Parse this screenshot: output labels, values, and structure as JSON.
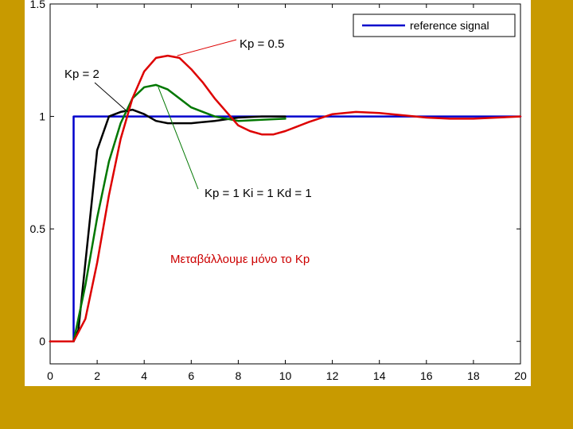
{
  "colors": {
    "background": "#c89a00",
    "panel": "#ffffff",
    "axes": "#000000"
  },
  "chart_data": {
    "type": "line",
    "title": "",
    "xlabel": "",
    "ylabel": "",
    "xlim": [
      0,
      20
    ],
    "ylim": [
      -0.1,
      1.5
    ],
    "x_ticks": [
      0,
      2,
      4,
      6,
      8,
      10,
      12,
      14,
      16,
      18,
      20
    ],
    "x_tick_labels": [
      "0",
      "2",
      "4",
      "6",
      "8",
      "10",
      "12",
      "14",
      "16",
      "18",
      "20"
    ],
    "y_ticks": [
      0,
      0.5,
      1,
      1.5
    ],
    "y_tick_labels": [
      "0",
      "0.5",
      "1",
      "1.5"
    ],
    "grid": false,
    "legend": {
      "placement": "top-right",
      "entries": [
        {
          "label": "reference signal",
          "color": "#0000cc"
        }
      ]
    },
    "series": [
      {
        "name": "reference signal",
        "color": "#0000cc",
        "x": [
          0,
          1,
          1,
          20
        ],
        "y": [
          0,
          0,
          1,
          1
        ]
      },
      {
        "color": "#000000",
        "x": [
          0,
          1.0,
          1.2,
          1.5,
          2.0,
          2.5,
          3.0,
          3.5,
          4.0,
          4.5,
          5.0,
          6.0,
          7.0,
          8.0,
          9.0,
          10.0
        ],
        "y": [
          0,
          0,
          0.05,
          0.35,
          0.85,
          1.0,
          1.02,
          1.03,
          1.01,
          0.98,
          0.97,
          0.97,
          0.98,
          0.995,
          1.0,
          1.0
        ]
      },
      {
        "color": "#007700",
        "x": [
          0,
          1.0,
          1.5,
          2.0,
          2.5,
          3.0,
          3.5,
          4.0,
          4.5,
          5.0,
          5.5,
          6.0,
          7.0,
          8.0,
          9.0,
          10.0
        ],
        "y": [
          0,
          0,
          0.25,
          0.55,
          0.8,
          0.97,
          1.08,
          1.13,
          1.14,
          1.12,
          1.08,
          1.04,
          1.0,
          0.98,
          0.985,
          0.99
        ]
      },
      {
        "color": "#dd0000",
        "x": [
          0,
          1.0,
          1.5,
          2.0,
          2.5,
          3.0,
          3.5,
          4.0,
          4.5,
          5.0,
          5.5,
          6.0,
          6.5,
          7.0,
          7.5,
          8.0,
          8.5,
          9.0,
          9.5,
          10.0,
          10.5,
          11.0,
          12.0,
          13.0,
          14.0,
          15.0,
          16.0,
          17.0,
          18.0,
          19.0,
          20.0
        ],
        "y": [
          0,
          0,
          0.1,
          0.35,
          0.65,
          0.9,
          1.08,
          1.2,
          1.26,
          1.27,
          1.26,
          1.21,
          1.15,
          1.08,
          1.02,
          0.96,
          0.935,
          0.92,
          0.92,
          0.935,
          0.955,
          0.975,
          1.01,
          1.02,
          1.015,
          1.005,
          0.995,
          0.99,
          0.99,
          0.995,
          1.0
        ]
      }
    ],
    "annotations": [
      {
        "text": "Kp = 0.5",
        "color": "#000000",
        "points_to": [
          5.4,
          1.27
        ]
      },
      {
        "text": "Kp = 2",
        "color": "#000000",
        "points_to": [
          3.3,
          1.02
        ]
      },
      {
        "text": "Kp = 1  Ki = 1  Kd = 1",
        "color": "#000000",
        "points_to": [
          4.6,
          1.13
        ]
      },
      {
        "text": "Μεταβάλλουμε μόνο το Kp",
        "color": "#cc0000"
      }
    ]
  }
}
